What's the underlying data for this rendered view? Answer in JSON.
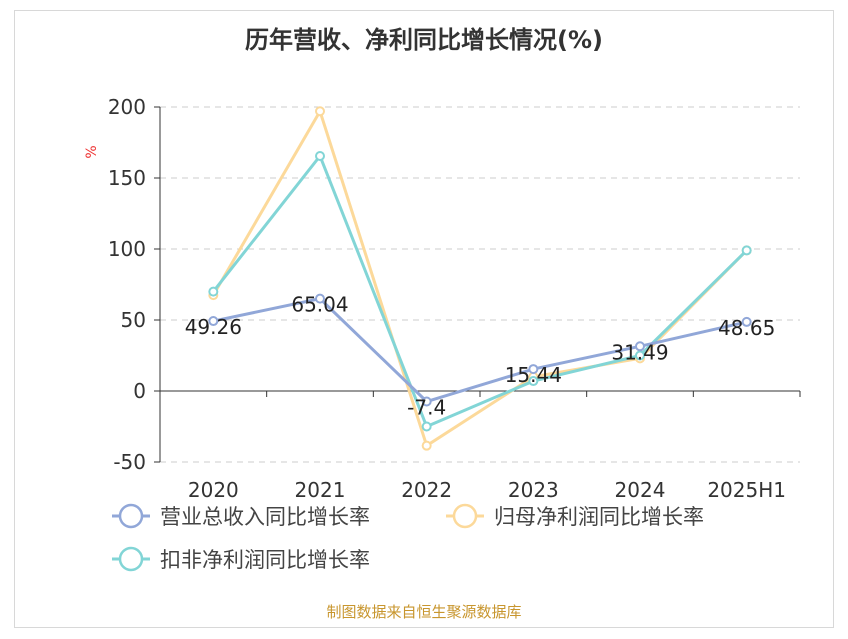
{
  "chart_data": {
    "type": "line",
    "title": "历年营收、净利同比增长情况(%)",
    "ylabel": "%",
    "xlabel": "",
    "ylim": [
      -50,
      200
    ],
    "yticks": [
      -50,
      0,
      50,
      100,
      150,
      200
    ],
    "grid": true,
    "categories": [
      "2020",
      "2021",
      "2022",
      "2023",
      "2024",
      "2025H1"
    ],
    "series": [
      {
        "name": "营业总收入同比增长率",
        "color": "#91a7d8",
        "values": [
          49.26,
          65.04,
          -7.4,
          15.44,
          31.49,
          48.65
        ],
        "labels": [
          "49.26",
          "65.04",
          "-7.4",
          "15.44",
          "31.49",
          "48.65"
        ]
      },
      {
        "name": "归母净利润同比增长率",
        "color": "#fcd99a",
        "values": [
          67.5,
          197,
          -38.5,
          10,
          23,
          99
        ]
      },
      {
        "name": "扣非净利润同比增长率",
        "color": "#82d5d6",
        "values": [
          70,
          165.5,
          -25,
          7,
          25,
          99
        ]
      }
    ],
    "legend_position": "bottom-left",
    "source": "制图数据来自恒生聚源数据库"
  }
}
